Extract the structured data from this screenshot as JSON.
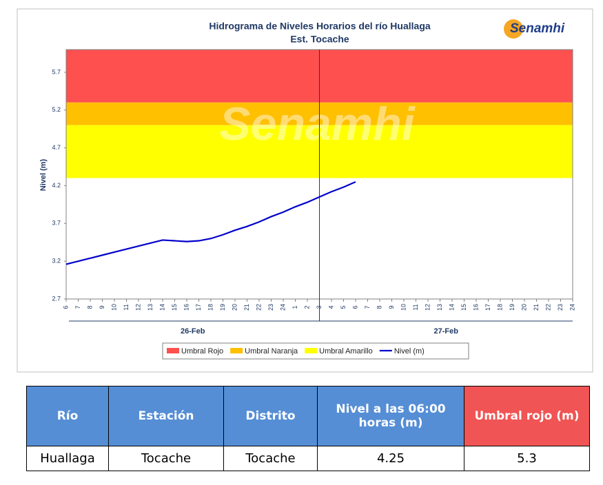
{
  "chart_data": {
    "type": "line",
    "title": "Hidrograma de Niveles Horarios del río Huallaga",
    "subtitle": "Est. Tocache",
    "logo": "Senamhi",
    "watermark": "Senamhi",
    "y_label": "Nivel (m)",
    "ylim": [
      2.7,
      6.0
    ],
    "yticks": [
      2.7,
      3.2,
      3.7,
      4.2,
      4.7,
      5.2,
      5.7
    ],
    "groups": [
      {
        "name": "26-Feb",
        "categories": [
          "6",
          "7",
          "8",
          "9",
          "10",
          "11",
          "12",
          "13",
          "14",
          "15",
          "16",
          "17",
          "18",
          "19",
          "20",
          "21",
          "22",
          "23",
          "24",
          "1",
          "2"
        ]
      },
      {
        "name": "27-Feb",
        "categories": [
          "3",
          "4",
          "5",
          "6",
          "7",
          "8",
          "9",
          "10",
          "11",
          "12",
          "13",
          "14",
          "15",
          "16",
          "17",
          "18",
          "19",
          "20",
          "21",
          "22",
          "23",
          "24"
        ]
      }
    ],
    "bands": [
      {
        "name": "Umbral Rojo",
        "color": "#ff5050",
        "range": [
          5.3,
          6.0
        ]
      },
      {
        "name": "Umbral Naranja",
        "color": "#ffc000",
        "range": [
          5.0,
          5.3
        ]
      },
      {
        "name": "Umbral Amarillo",
        "color": "#ffff00",
        "range": [
          4.3,
          5.0
        ]
      }
    ],
    "series": [
      {
        "name": "Nivel (m)",
        "color": "#0000cc",
        "values": [
          3.16,
          3.2,
          3.24,
          3.28,
          3.32,
          3.36,
          3.4,
          3.44,
          3.48,
          3.47,
          3.46,
          3.47,
          3.5,
          3.55,
          3.61,
          3.66,
          3.72,
          3.79,
          3.85,
          3.92,
          3.98,
          4.05,
          4.12,
          4.18,
          4.25,
          null,
          null,
          null,
          null,
          null,
          null,
          null,
          null,
          null,
          null,
          null,
          null,
          null,
          null,
          null,
          null,
          null,
          null
        ]
      }
    ],
    "legend": "bottom"
  },
  "table": {
    "headers": [
      "Río",
      "Estación",
      "Distrito",
      "Nivel a las 06:00 horas (m)",
      "Umbral rojo (m)"
    ],
    "rows": [
      [
        "Huallaga",
        "Tocache",
        "Tocache",
        "4.25",
        "5.3"
      ]
    ]
  }
}
